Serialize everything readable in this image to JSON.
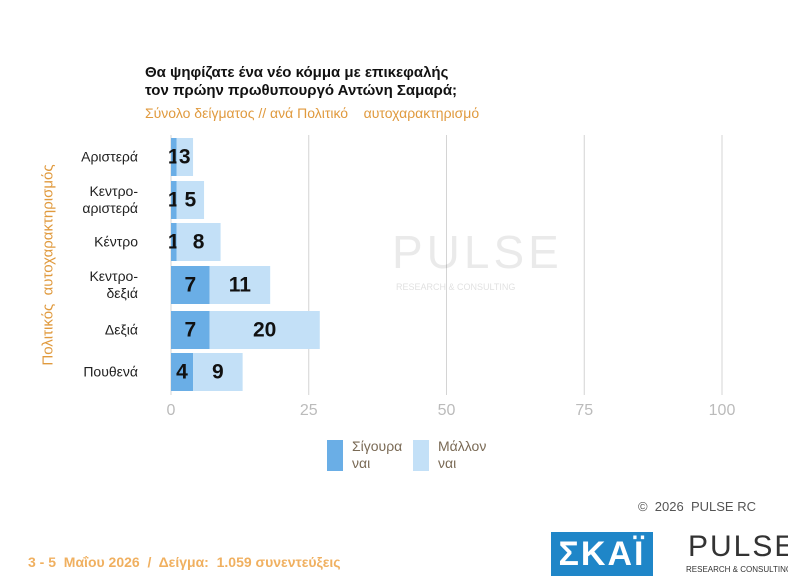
{
  "chart_data": {
    "type": "stacked_barh",
    "title": "Θα ψηφίζατε ένα νέο κόμμα με επικεφαλής\nτον πρώην πρωθυπουργό Αντώνη Σαμαρά;",
    "subtitle": "Σύνολο δείγματος // ανά Πολιτικό    αυτοχαρακτηρισμό",
    "y_label": "Πολιτικός  αυτοχαρακτηρισμός",
    "categories": [
      "Αριστερά",
      "Κεντρο-\nαριστερά",
      "Κέντρο",
      "Κεντρο-\nδεξιά",
      "Δεξιά",
      "Πουθενά"
    ],
    "series": [
      {
        "name": "Σίγουρα ναι",
        "color": "#6aaee6",
        "values": [
          1,
          1,
          1,
          7,
          7,
          4
        ]
      },
      {
        "name": "Μάλλον ναι",
        "color": "#c3e0f7",
        "values": [
          3,
          5,
          8,
          11,
          20,
          9
        ]
      }
    ],
    "xlim": [
      0,
      100
    ],
    "xticks": [
      0,
      25,
      50,
      75,
      100
    ],
    "grid": true,
    "footer": "3 - 5  Μαΐου 2026  /  Δείγμα:  1.059 συνεντεύξεις",
    "copyright": "©  2026  PULSE RC",
    "logos": {
      "skai": "ΣΚΑΪ",
      "pulse": "PULSE",
      "pulse_sub": "RESEARCH & CONSULTING"
    }
  }
}
